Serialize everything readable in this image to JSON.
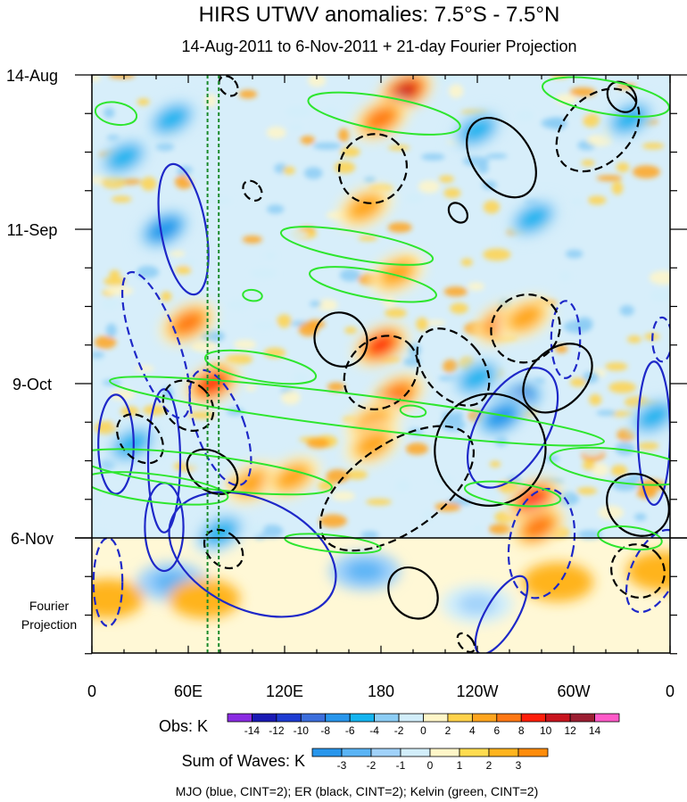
{
  "chart_data": {
    "type": "heatmap",
    "title": "HIRS UTWV anomalies: 7.5°S - 7.5°N",
    "subtitle": "14-Aug-2011 to 6-Nov-2011 + 21-day Fourier Projection",
    "xlabel": "",
    "ylabel": "",
    "x_ticks": [
      {
        "lon": 0,
        "label": "0"
      },
      {
        "lon": 60,
        "label": "60E"
      },
      {
        "lon": 120,
        "label": "120E"
      },
      {
        "lon": 180,
        "label": "180"
      },
      {
        "lon": 240,
        "label": "120W"
      },
      {
        "lon": 300,
        "label": "60W"
      },
      {
        "lon": 360,
        "label": "0"
      }
    ],
    "xlim": [
      0,
      360
    ],
    "y_ticks": [
      {
        "day": 0,
        "label": "14-Aug"
      },
      {
        "day": 28,
        "label": "11-Sep"
      },
      {
        "day": 56,
        "label": "9-Oct"
      },
      {
        "day": 84,
        "label": "6-Nov"
      }
    ],
    "ylim": [
      0,
      105
    ],
    "y_axis_direction": "time increases downward",
    "projection_label": "Fourier Projection",
    "projection_start_day": 84,
    "marker_lines_lon": [
      72,
      79
    ],
    "obs_colorbar": {
      "label": "Obs: K",
      "levels": [
        "-14",
        "-12",
        "-10",
        "-8",
        "-6",
        "-4",
        "-2",
        "0",
        "2",
        "4",
        "6",
        "8",
        "10",
        "12",
        "14"
      ],
      "colors": [
        "#8a2be2",
        "#1a1ab4",
        "#1e3cd2",
        "#3c6edc",
        "#2896ec",
        "#14b4f0",
        "#8ccdf5",
        "#d2eefa",
        "#fff6c8",
        "#ffd24b",
        "#ffa51e",
        "#ff7814",
        "#ff1e0a",
        "#c8141e",
        "#9b1e32",
        "#ff5ac8"
      ]
    },
    "waves_colorbar": {
      "label": "Sum of Waves: K",
      "levels": [
        "-3",
        "-2",
        "-1",
        "0",
        "1",
        "2",
        "3"
      ],
      "colors": [
        "#2896ec",
        "#5ab4f5",
        "#a0d2fa",
        "#d2eefa",
        "#fff6c8",
        "#ffdc50",
        "#ffb41e",
        "#ff8c0a"
      ]
    },
    "contour_note": "MJO (blue, CINT=2); ER (black, CINT=2); Kelvin (green, CINT=2)",
    "series": [
      {
        "name": "MJO",
        "color": "#1e28c8"
      },
      {
        "name": "ER",
        "color": "#000000"
      },
      {
        "name": "Kelvin",
        "color": "#2ee62e"
      }
    ],
    "anomaly_centers": [
      {
        "lon": 195,
        "day": 3,
        "value": 12
      },
      {
        "lon": 180,
        "day": 8,
        "value": 8
      },
      {
        "lon": 170,
        "day": 24,
        "value": 6
      },
      {
        "lon": 190,
        "day": 36,
        "value": 6
      },
      {
        "lon": 180,
        "day": 49,
        "value": 9
      },
      {
        "lon": 255,
        "day": 45,
        "value": 8
      },
      {
        "lon": 270,
        "day": 44,
        "value": 6
      },
      {
        "lon": 60,
        "day": 45,
        "value": 8
      },
      {
        "lon": 75,
        "day": 56,
        "value": 10
      },
      {
        "lon": 190,
        "day": 58,
        "value": 8
      },
      {
        "lon": 175,
        "day": 63,
        "value": 6
      },
      {
        "lon": 175,
        "day": 67,
        "value": 5
      },
      {
        "lon": 275,
        "day": 77,
        "value": 9
      },
      {
        "lon": 278,
        "day": 82,
        "value": 8
      },
      {
        "lon": 100,
        "day": 74,
        "value": 5
      },
      {
        "lon": 125,
        "day": 73,
        "value": 5
      },
      {
        "lon": 45,
        "day": 28,
        "value": -7
      },
      {
        "lon": 50,
        "day": 8,
        "value": -6
      },
      {
        "lon": 20,
        "day": 15,
        "value": -5
      },
      {
        "lon": 240,
        "day": 10,
        "value": -6
      },
      {
        "lon": 275,
        "day": 26,
        "value": -6
      },
      {
        "lon": 265,
        "day": 59,
        "value": -10
      },
      {
        "lon": 255,
        "day": 62,
        "value": -8
      },
      {
        "lon": 350,
        "day": 62,
        "value": -6
      },
      {
        "lon": 25,
        "day": 67,
        "value": -6
      },
      {
        "lon": 80,
        "day": 83,
        "value": -6
      },
      {
        "lon": 240,
        "day": 55,
        "value": -6
      },
      {
        "lon": 335,
        "day": 8,
        "value": -5
      }
    ],
    "projection_centers": [
      {
        "lon": 50,
        "day": 92,
        "value": -2
      },
      {
        "lon": 170,
        "day": 90,
        "value": -2
      },
      {
        "lon": 240,
        "day": 96,
        "value": -1
      },
      {
        "lon": 10,
        "day": 95,
        "value": 2
      },
      {
        "lon": 70,
        "day": 95,
        "value": 2
      },
      {
        "lon": 290,
        "day": 92,
        "value": 2
      },
      {
        "lon": 355,
        "day": 90,
        "value": 2
      }
    ],
    "mjo_contours": [
      {
        "lon": 57,
        "day": 28,
        "rx": 14,
        "ry": 12,
        "rot": -10,
        "dashed": false
      },
      {
        "lon": 40,
        "day": 49,
        "rx": 14,
        "ry": 14,
        "rot": -20,
        "dashed": true
      },
      {
        "lon": 15,
        "day": 67,
        "rx": 11,
        "ry": 9,
        "rot": 0,
        "dashed": false
      },
      {
        "lon": 45,
        "day": 70,
        "rx": 10,
        "ry": 13,
        "rot": 0,
        "dashed": false
      },
      {
        "lon": 80,
        "day": 64,
        "rx": 15,
        "ry": 11,
        "rot": -20,
        "dashed": true
      },
      {
        "lon": 100,
        "day": 87,
        "rx": 55,
        "ry": 10,
        "rot": 25,
        "dashed": false
      },
      {
        "lon": 45,
        "day": 82,
        "rx": 12,
        "ry": 8,
        "rot": 0,
        "dashed": false
      },
      {
        "lon": 10,
        "day": 92,
        "rx": 9,
        "ry": 8,
        "rot": 0,
        "dashed": true
      },
      {
        "lon": 262,
        "day": 64,
        "rx": 22,
        "ry": 12,
        "rot": 30,
        "dashed": false
      },
      {
        "lon": 280,
        "day": 85,
        "rx": 20,
        "ry": 10,
        "rot": 10,
        "dashed": true
      },
      {
        "lon": 255,
        "day": 98,
        "rx": 10,
        "ry": 8,
        "rot": 30,
        "dashed": false
      },
      {
        "lon": 295,
        "day": 48,
        "rx": 9,
        "ry": 7,
        "rot": 0,
        "dashed": true
      },
      {
        "lon": 355,
        "day": 48,
        "rx": 6,
        "ry": 4,
        "rot": 0,
        "dashed": true
      },
      {
        "lon": 350,
        "day": 65,
        "rx": 10,
        "ry": 13,
        "rot": 0,
        "dashed": false
      },
      {
        "lon": 350,
        "day": 90,
        "rx": 14,
        "ry": 8,
        "rot": 25,
        "dashed": true
      }
    ],
    "er_contours": [
      {
        "lon": 248,
        "day": 68,
        "rx": 35,
        "ry": 10,
        "rot": -60,
        "dashed": false
      },
      {
        "lon": 190,
        "day": 75,
        "rx": 55,
        "ry": 8,
        "rot": -35,
        "dashed": true
      },
      {
        "lon": 175,
        "day": 17,
        "rx": 22,
        "ry": 6,
        "rot": -55,
        "dashed": true
      },
      {
        "lon": 255,
        "day": 15,
        "rx": 18,
        "ry": 8,
        "rot": -35,
        "dashed": false
      },
      {
        "lon": 315,
        "day": 10,
        "rx": 30,
        "ry": 6,
        "rot": -45,
        "dashed": true
      },
      {
        "lon": 225,
        "day": 53,
        "rx": 18,
        "ry": 8,
        "rot": -40,
        "dashed": true
      },
      {
        "lon": 180,
        "day": 54,
        "rx": 25,
        "ry": 6,
        "rot": -45,
        "dashed": true
      },
      {
        "lon": 155,
        "day": 48,
        "rx": 16,
        "ry": 5,
        "rot": -35,
        "dashed": false
      },
      {
        "lon": 270,
        "day": 46,
        "rx": 22,
        "ry": 6,
        "rot": -40,
        "dashed": true
      },
      {
        "lon": 290,
        "day": 55,
        "rx": 25,
        "ry": 5,
        "rot": -45,
        "dashed": false
      },
      {
        "lon": 340,
        "day": 78,
        "rx": 18,
        "ry": 6,
        "rot": -45,
        "dashed": false
      },
      {
        "lon": 340,
        "day": 90,
        "rx": 16,
        "ry": 5,
        "rot": -45,
        "dashed": true
      },
      {
        "lon": 30,
        "day": 66,
        "rx": 12,
        "ry": 5,
        "rot": -40,
        "dashed": true
      },
      {
        "lon": 60,
        "day": 60,
        "rx": 14,
        "ry": 5,
        "rot": -45,
        "dashed": true
      },
      {
        "lon": 75,
        "day": 72,
        "rx": 12,
        "ry": 5,
        "rot": -55,
        "dashed": false
      },
      {
        "lon": 82,
        "day": 86,
        "rx": 10,
        "ry": 4,
        "rot": -45,
        "dashed": true
      },
      {
        "lon": 200,
        "day": 94,
        "rx": 14,
        "ry": 5,
        "rot": -40,
        "dashed": false
      },
      {
        "lon": 233,
        "day": 103,
        "rx": 4,
        "ry": 2,
        "rot": -40,
        "dashed": true
      },
      {
        "lon": 330,
        "day": 4,
        "rx": 8,
        "ry": 3,
        "rot": -40,
        "dashed": false
      },
      {
        "lon": 228,
        "day": 25,
        "rx": 5,
        "ry": 2,
        "rot": -40,
        "dashed": false
      },
      {
        "lon": 100,
        "day": 21,
        "rx": 5,
        "ry": 2,
        "rot": -40,
        "dashed": true
      },
      {
        "lon": 85,
        "day": 2,
        "rx": 5,
        "ry": 2,
        "rot": -40,
        "dashed": true
      }
    ],
    "kelvin_contours": [
      {
        "lon": 182,
        "day": 7,
        "rx": 48,
        "ry": 3,
        "rot": 10,
        "dashed": false
      },
      {
        "lon": 15,
        "day": 7,
        "rx": 13,
        "ry": 2,
        "rot": 10,
        "dashed": false
      },
      {
        "lon": 320,
        "day": 4,
        "rx": 40,
        "ry": 3,
        "rot": 10,
        "dashed": false
      },
      {
        "lon": 165,
        "day": 31,
        "rx": 48,
        "ry": 2.5,
        "rot": 10,
        "dashed": false
      },
      {
        "lon": 175,
        "day": 38,
        "rx": 40,
        "ry": 2.5,
        "rot": 10,
        "dashed": false
      },
      {
        "lon": 105,
        "day": 53,
        "rx": 35,
        "ry": 2.5,
        "rot": 10,
        "dashed": false
      },
      {
        "lon": 165,
        "day": 61,
        "rx": 155,
        "ry": 3,
        "rot": 7,
        "dashed": false
      },
      {
        "lon": 70,
        "day": 72,
        "rx": 80,
        "ry": 3,
        "rot": 7,
        "dashed": false
      },
      {
        "lon": 40,
        "day": 75,
        "rx": 45,
        "ry": 2.5,
        "rot": 7,
        "dashed": false
      },
      {
        "lon": 330,
        "day": 71,
        "rx": 45,
        "ry": 3,
        "rot": 7,
        "dashed": false
      },
      {
        "lon": 335,
        "day": 84,
        "rx": 20,
        "ry": 2,
        "rot": 7,
        "dashed": false
      },
      {
        "lon": 262,
        "day": 76,
        "rx": 30,
        "ry": 2,
        "rot": 7,
        "dashed": false
      },
      {
        "lon": 150,
        "day": 85,
        "rx": 30,
        "ry": 1.5,
        "rot": 6,
        "dashed": false
      },
      {
        "lon": 200,
        "day": 61,
        "rx": 8,
        "ry": 1,
        "rot": 7,
        "dashed": false
      },
      {
        "lon": 100,
        "day": 40,
        "rx": 6,
        "ry": 1,
        "rot": 7,
        "dashed": false
      }
    ]
  }
}
